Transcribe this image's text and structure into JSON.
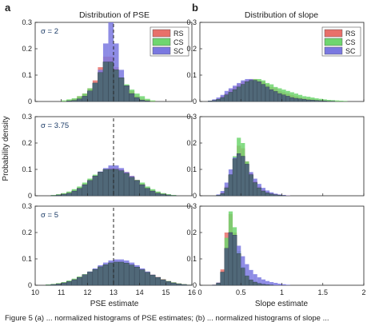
{
  "figure": {
    "panel_a_label": "a",
    "panel_b_label": "b",
    "col_a_title": "Distribution of PSE",
    "col_b_title": "Distribution of slope",
    "ylabel": "Probability density",
    "xlabel_a": "PSE estimate",
    "xlabel_b": "Slope estimate",
    "caption": "Figure 5 (a) ... normalized histograms of PSE estimates; (b) ... normalized histograms of slope ..."
  },
  "colors": {
    "RS": "#e8706a",
    "CS": "#6fd66f",
    "SC": "#7a78e0",
    "overlap": "#506878",
    "edge": "#2e3d4a"
  },
  "chart_data": [
    {
      "type": "bar",
      "panel": "a",
      "row": 1,
      "annotation": "σ = 2",
      "xlim": [
        10,
        16
      ],
      "ylim": [
        0,
        0.3
      ],
      "bin_start": 11.0,
      "bin_width": 0.2,
      "vline": 13,
      "x_ticks": [
        "10",
        "11",
        "12",
        "13",
        "14",
        "15",
        "16"
      ],
      "y_ticks": [
        "0",
        "0.1",
        "0.2",
        "0.3"
      ],
      "legend": [
        "RS",
        "CS",
        "SC"
      ],
      "legend_position": "top-right",
      "series": [
        {
          "name": "RS",
          "values": [
            0.002,
            0.005,
            0.01,
            0.02,
            0.03,
            0.05,
            0.08,
            0.13,
            0.17,
            0.17,
            0.13,
            0.09,
            0.06,
            0.04,
            0.02,
            0.01,
            0.006,
            0.003
          ]
        },
        {
          "name": "CS",
          "values": [
            0.004,
            0.008,
            0.012,
            0.02,
            0.03,
            0.05,
            0.07,
            0.11,
            0.15,
            0.15,
            0.12,
            0.09,
            0.065,
            0.045,
            0.03,
            0.02,
            0.01,
            0.004
          ]
        },
        {
          "name": "SC",
          "values": [
            0.0,
            0.002,
            0.004,
            0.01,
            0.02,
            0.04,
            0.07,
            0.12,
            0.22,
            0.3,
            0.22,
            0.12,
            0.06,
            0.03,
            0.015,
            0.005,
            0.002,
            0.0
          ]
        }
      ]
    },
    {
      "type": "bar",
      "panel": "b",
      "row": 1,
      "xlim": [
        0,
        2
      ],
      "ylim": [
        0,
        0.3
      ],
      "bin_start": 0.1,
      "bin_width": 0.05,
      "x_ticks": [
        "0",
        "0.5",
        "1",
        "1.5",
        "2"
      ],
      "y_ticks": [
        "0",
        "0.1",
        "0.2",
        "0.3"
      ],
      "legend": [
        "RS",
        "CS",
        "SC"
      ],
      "legend_position": "top-right",
      "series": [
        {
          "name": "RS",
          "values": [
            0.002,
            0.005,
            0.01,
            0.02,
            0.03,
            0.045,
            0.055,
            0.065,
            0.075,
            0.08,
            0.085,
            0.085,
            0.08,
            0.075,
            0.065,
            0.055,
            0.05,
            0.04,
            0.035,
            0.03,
            0.025,
            0.02,
            0.015,
            0.012,
            0.01,
            0.008,
            0.006,
            0.005,
            0.003,
            0.002,
            0.001,
            0.001,
            0.0,
            0.0
          ]
        },
        {
          "name": "CS",
          "values": [
            0.002,
            0.004,
            0.008,
            0.015,
            0.025,
            0.035,
            0.045,
            0.055,
            0.065,
            0.075,
            0.08,
            0.085,
            0.085,
            0.08,
            0.07,
            0.065,
            0.055,
            0.05,
            0.045,
            0.04,
            0.035,
            0.03,
            0.025,
            0.02,
            0.018,
            0.015,
            0.012,
            0.01,
            0.008,
            0.006,
            0.005,
            0.004,
            0.003,
            0.002
          ]
        },
        {
          "name": "SC",
          "values": [
            0.003,
            0.008,
            0.015,
            0.025,
            0.04,
            0.05,
            0.06,
            0.07,
            0.08,
            0.085,
            0.085,
            0.08,
            0.075,
            0.065,
            0.055,
            0.045,
            0.038,
            0.03,
            0.025,
            0.02,
            0.015,
            0.012,
            0.01,
            0.008,
            0.006,
            0.005,
            0.004,
            0.003,
            0.002,
            0.001,
            0.001,
            0.0,
            0.0,
            0.0
          ]
        }
      ]
    },
    {
      "type": "bar",
      "panel": "a",
      "row": 2,
      "annotation": "σ = 3.75",
      "xlim": [
        10,
        16
      ],
      "ylim": [
        0,
        0.3
      ],
      "bin_start": 10.6,
      "bin_width": 0.2,
      "vline": 13,
      "x_ticks": [
        "10",
        "11",
        "12",
        "13",
        "14",
        "15",
        "16"
      ],
      "y_ticks": [
        "0",
        "0.1",
        "0.2",
        "0.3"
      ],
      "series": [
        {
          "name": "RS",
          "values": [
            0.002,
            0.004,
            0.008,
            0.013,
            0.02,
            0.03,
            0.045,
            0.06,
            0.075,
            0.09,
            0.1,
            0.105,
            0.105,
            0.1,
            0.09,
            0.075,
            0.06,
            0.045,
            0.03,
            0.02,
            0.013,
            0.008,
            0.004,
            0.002
          ]
        },
        {
          "name": "CS",
          "values": [
            0.003,
            0.006,
            0.01,
            0.016,
            0.025,
            0.035,
            0.05,
            0.065,
            0.08,
            0.09,
            0.1,
            0.1,
            0.1,
            0.095,
            0.085,
            0.07,
            0.06,
            0.05,
            0.035,
            0.025,
            0.016,
            0.01,
            0.006,
            0.003
          ]
        },
        {
          "name": "SC",
          "values": [
            0.001,
            0.003,
            0.006,
            0.01,
            0.018,
            0.028,
            0.042,
            0.058,
            0.075,
            0.092,
            0.105,
            0.115,
            0.115,
            0.105,
            0.09,
            0.075,
            0.058,
            0.042,
            0.028,
            0.018,
            0.01,
            0.006,
            0.003,
            0.001
          ]
        }
      ]
    },
    {
      "type": "bar",
      "panel": "b",
      "row": 2,
      "xlim": [
        0,
        2
      ],
      "ylim": [
        0,
        0.3
      ],
      "bin_start": 0.2,
      "bin_width": 0.05,
      "x_ticks": [
        "0",
        "0.5",
        "1",
        "1.5",
        "2"
      ],
      "y_ticks": [
        "0",
        "0.1",
        "0.2",
        "0.3"
      ],
      "series": [
        {
          "name": "RS",
          "values": [
            0.003,
            0.012,
            0.035,
            0.08,
            0.14,
            0.19,
            0.18,
            0.13,
            0.085,
            0.055,
            0.035,
            0.022,
            0.014,
            0.009,
            0.006,
            0.004,
            0.002,
            0.001
          ]
        },
        {
          "name": "CS",
          "values": [
            0.002,
            0.008,
            0.03,
            0.08,
            0.15,
            0.22,
            0.2,
            0.13,
            0.08,
            0.05,
            0.03,
            0.018,
            0.011,
            0.007,
            0.004,
            0.002,
            0.001,
            0.0
          ]
        },
        {
          "name": "SC",
          "values": [
            0.005,
            0.018,
            0.05,
            0.1,
            0.145,
            0.16,
            0.15,
            0.12,
            0.09,
            0.065,
            0.045,
            0.03,
            0.02,
            0.013,
            0.008,
            0.005,
            0.003,
            0.001
          ]
        }
      ]
    },
    {
      "type": "bar",
      "panel": "a",
      "row": 3,
      "annotation": "σ = 5",
      "xlim": [
        10,
        16
      ],
      "ylim": [
        0,
        0.3
      ],
      "bin_start": 10.4,
      "bin_width": 0.2,
      "vline": 13,
      "x_ticks": [
        "10",
        "11",
        "12",
        "13",
        "14",
        "15",
        "16"
      ],
      "y_ticks": [
        "0",
        "0.1",
        "0.2",
        "0.3"
      ],
      "series": [
        {
          "name": "RS",
          "values": [
            0.002,
            0.004,
            0.007,
            0.011,
            0.016,
            0.023,
            0.031,
            0.04,
            0.05,
            0.06,
            0.07,
            0.078,
            0.085,
            0.088,
            0.088,
            0.085,
            0.078,
            0.07,
            0.06,
            0.05,
            0.04,
            0.031,
            0.023,
            0.016,
            0.011,
            0.007,
            0.004,
            0.002
          ]
        },
        {
          "name": "CS",
          "values": [
            0.003,
            0.005,
            0.008,
            0.012,
            0.018,
            0.025,
            0.033,
            0.042,
            0.052,
            0.062,
            0.071,
            0.079,
            0.085,
            0.088,
            0.088,
            0.084,
            0.077,
            0.069,
            0.059,
            0.049,
            0.039,
            0.03,
            0.022,
            0.016,
            0.011,
            0.007,
            0.004,
            0.002
          ]
        },
        {
          "name": "SC",
          "values": [
            0.001,
            0.003,
            0.005,
            0.009,
            0.014,
            0.021,
            0.03,
            0.04,
            0.052,
            0.064,
            0.076,
            0.086,
            0.094,
            0.098,
            0.098,
            0.094,
            0.086,
            0.076,
            0.064,
            0.052,
            0.04,
            0.03,
            0.021,
            0.014,
            0.009,
            0.005,
            0.003,
            0.001
          ]
        }
      ]
    },
    {
      "type": "bar",
      "panel": "b",
      "row": 3,
      "xlim": [
        0,
        2
      ],
      "ylim": [
        0,
        0.3
      ],
      "bin_start": 0.15,
      "bin_width": 0.05,
      "x_ticks": [
        "0",
        "0.5",
        "1",
        "1.5",
        "2"
      ],
      "y_ticks": [
        "0",
        "0.1",
        "0.2",
        "0.3"
      ],
      "series": [
        {
          "name": "RS",
          "values": [
            0.002,
            0.01,
            0.06,
            0.2,
            0.27,
            0.2,
            0.12,
            0.065,
            0.035,
            0.02,
            0.012,
            0.007,
            0.004,
            0.002,
            0.001,
            0.0,
            0.0,
            0.0,
            0.0
          ]
        },
        {
          "name": "CS",
          "values": [
            0.001,
            0.008,
            0.05,
            0.18,
            0.28,
            0.22,
            0.13,
            0.07,
            0.037,
            0.02,
            0.012,
            0.007,
            0.004,
            0.002,
            0.001,
            0.0,
            0.0,
            0.0,
            0.0
          ]
        },
        {
          "name": "SC",
          "values": [
            0.002,
            0.01,
            0.05,
            0.14,
            0.2,
            0.19,
            0.15,
            0.11,
            0.08,
            0.058,
            0.042,
            0.03,
            0.022,
            0.016,
            0.012,
            0.009,
            0.006,
            0.004,
            0.002
          ]
        }
      ]
    }
  ]
}
